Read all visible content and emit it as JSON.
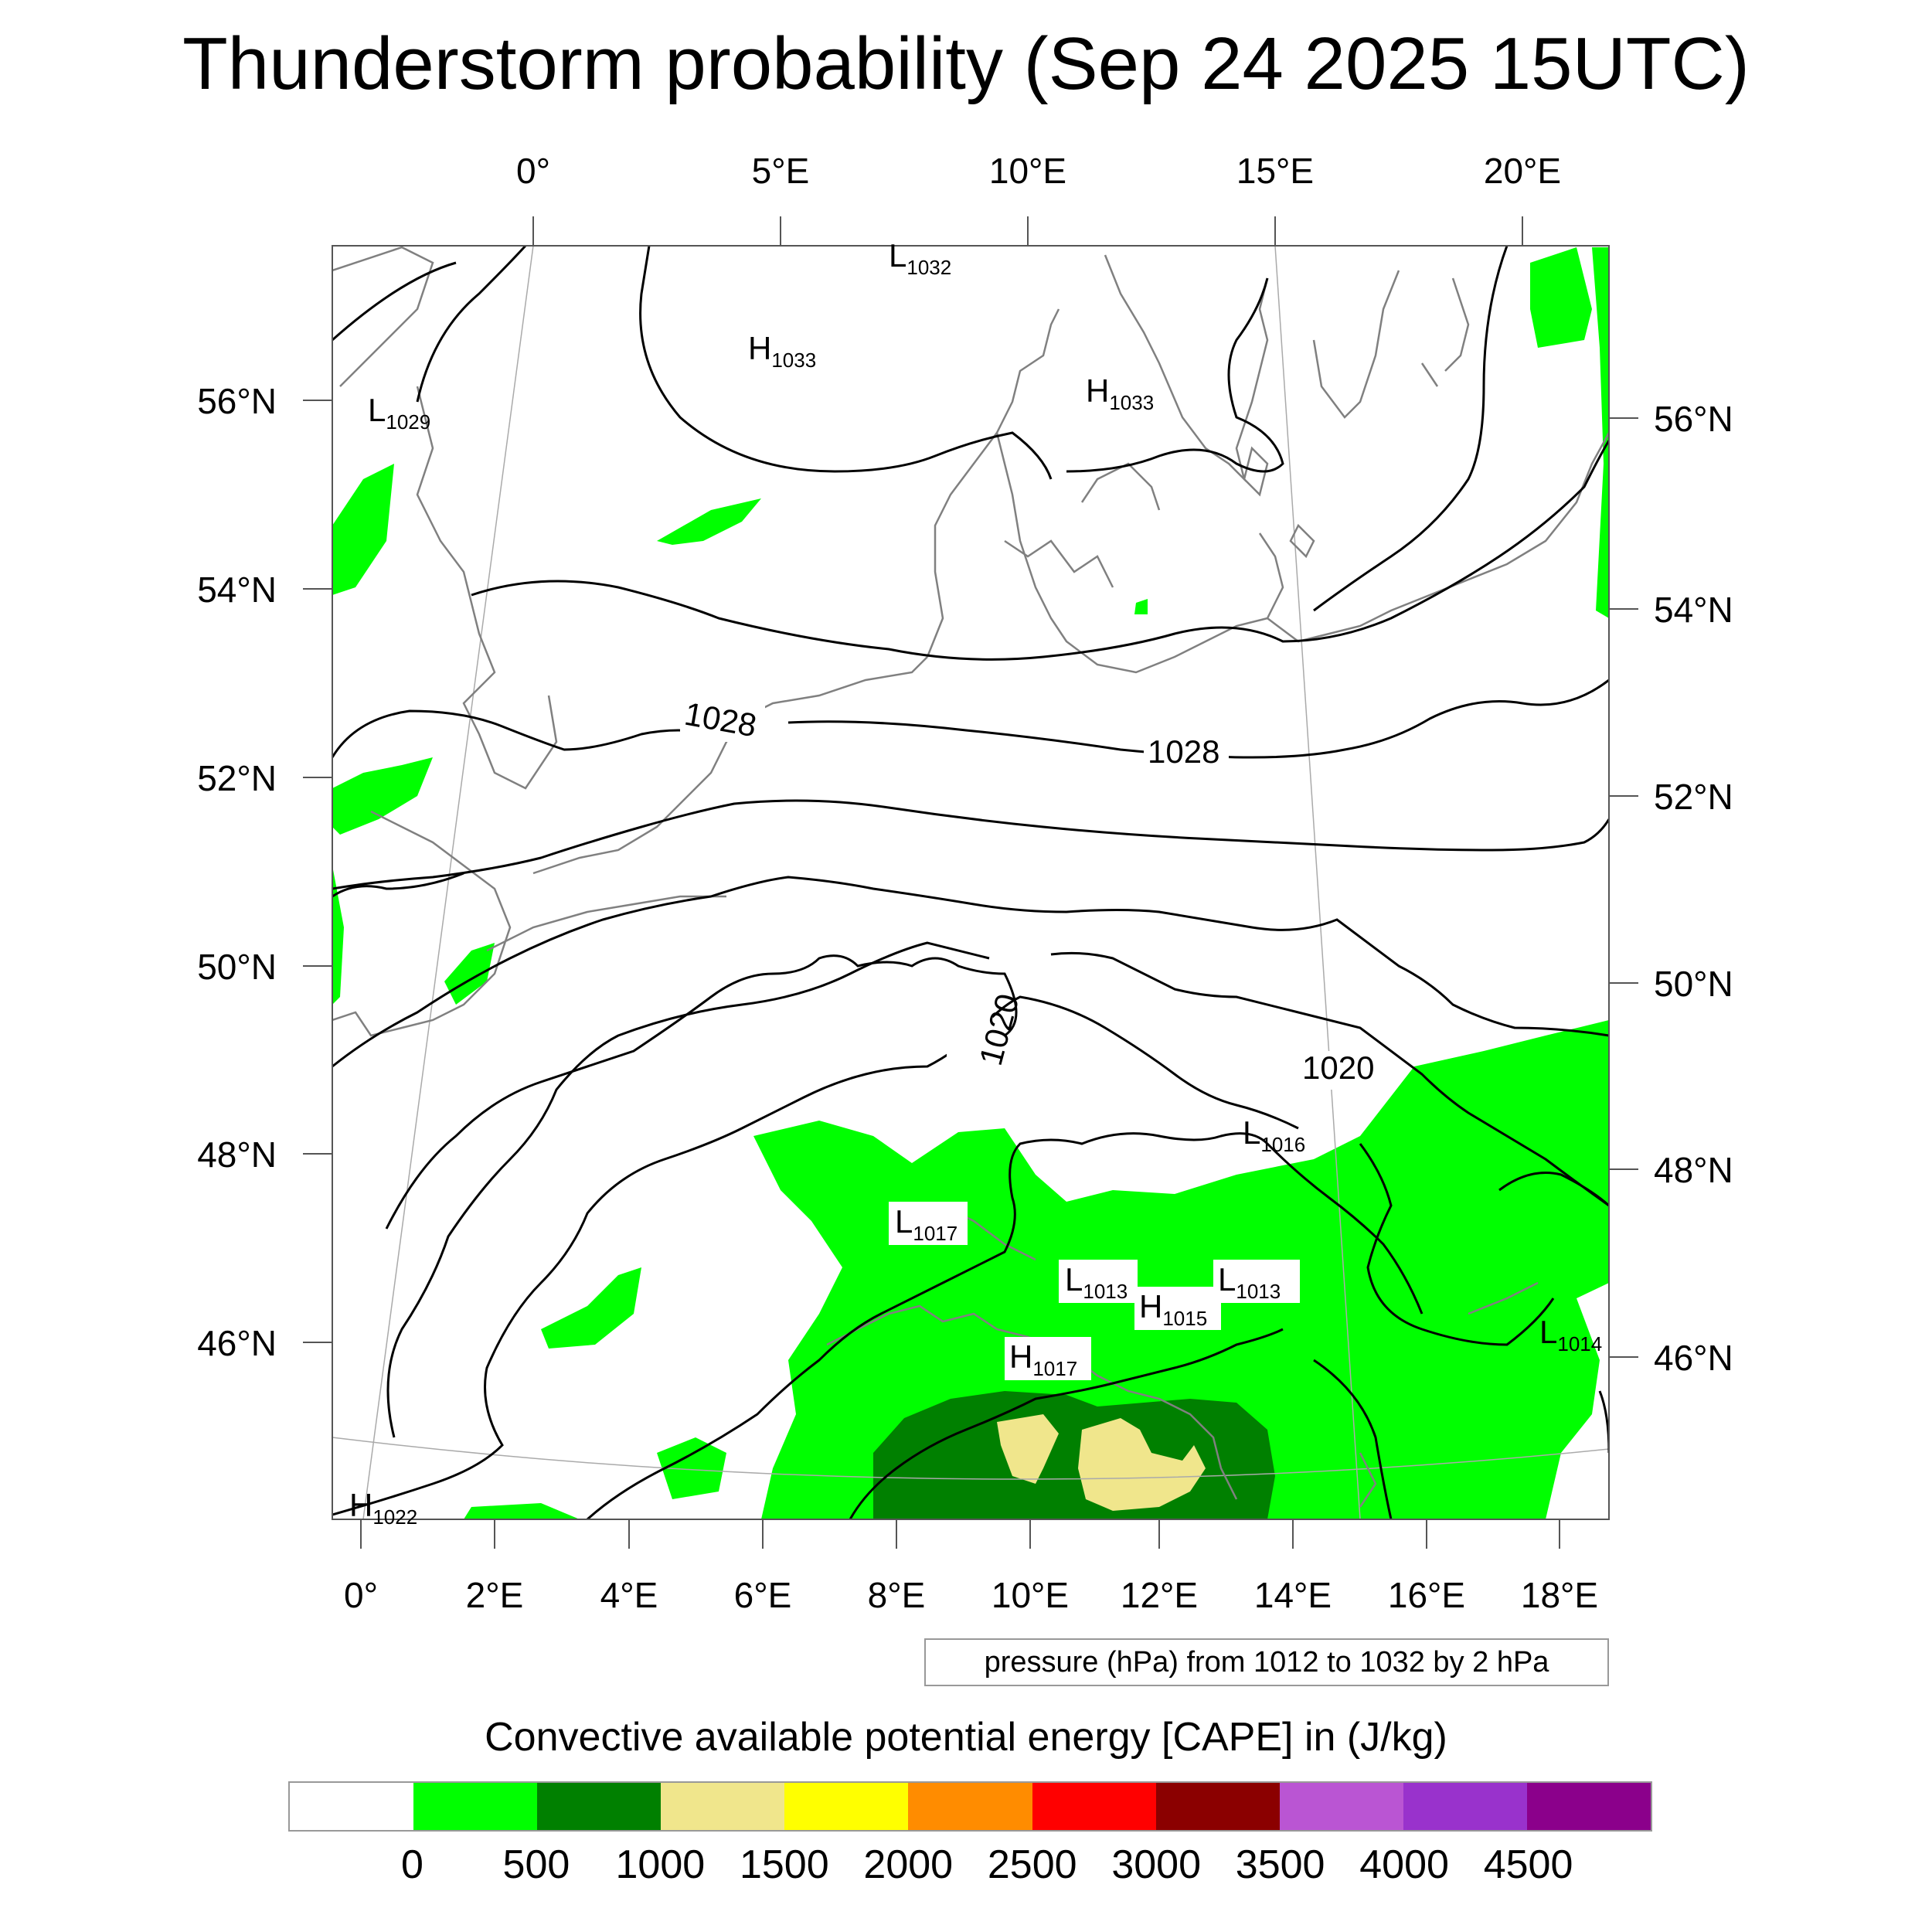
{
  "title": "Thunderstorm probability (Sep 24 2025 15UTC)",
  "top_longitude_labels": [
    "0°",
    "5°E",
    "10°E",
    "15°E",
    "20°E"
  ],
  "bottom_longitude_labels": [
    "0°",
    "2°E",
    "4°E",
    "6°E",
    "8°E",
    "10°E",
    "12°E",
    "14°E",
    "16°E",
    "18°E"
  ],
  "left_latitude_labels": [
    "56°N",
    "54°N",
    "52°N",
    "50°N",
    "48°N",
    "46°N"
  ],
  "right_latitude_labels": [
    "56°N",
    "54°N",
    "52°N",
    "50°N",
    "48°N",
    "46°N"
  ],
  "isobar_labels": [
    "1028",
    "1028",
    "1020",
    "1020"
  ],
  "pressure_centers": [
    {
      "type": "L",
      "value": "1032"
    },
    {
      "type": "H",
      "value": "1033"
    },
    {
      "type": "H",
      "value": "1033"
    },
    {
      "type": "L",
      "value": "1029"
    },
    {
      "type": "L",
      "value": "1016"
    },
    {
      "type": "L",
      "value": "1017"
    },
    {
      "type": "L",
      "value": "1013"
    },
    {
      "type": "H",
      "value": "1015"
    },
    {
      "type": "L",
      "value": "1013"
    },
    {
      "type": "H",
      "value": "1017"
    },
    {
      "type": "L",
      "value": "1014"
    },
    {
      "type": "H",
      "value": "1022"
    }
  ],
  "contour_info": "pressure (hPa) from 1012 to 1032 by 2 hPa",
  "colorbar": {
    "title": "Convective available potential energy [CAPE] in (J/kg)",
    "colors": [
      "#ffffff",
      "#00ff00",
      "#008000",
      "#f0e68c",
      "#ffff00",
      "#ff8c00",
      "#ff0000",
      "#8b0000",
      "#ba55d3",
      "#9932cc",
      "#8b008b"
    ],
    "ticks": [
      "0",
      "500",
      "1000",
      "1500",
      "2000",
      "2500",
      "3000",
      "3500",
      "4000",
      "4500"
    ]
  },
  "colors": {
    "cape_low": "#00ff00",
    "cape_mid": "#008000",
    "cape_high": "#f0e68c",
    "coastline": "#808080",
    "isobar": "#000000"
  }
}
